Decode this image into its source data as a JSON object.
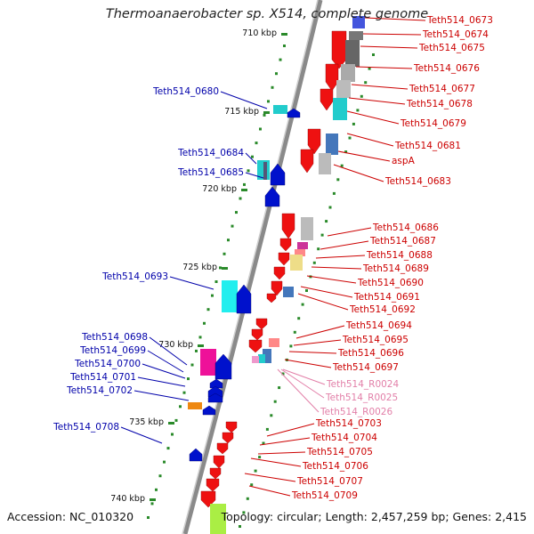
{
  "title": "Thermoanaerobacter sp. X514, complete genome",
  "footer": {
    "accession": "Accession: NC_010320",
    "summary": "Topology: circular; Length: 2,457,259 bp; Genes: 2,415"
  },
  "colors": {
    "plus_label": "#0000aa",
    "minus_label": "#cc0000",
    "rna_label": "#e27fa8",
    "backbone": "#888888",
    "tick": "#2a8a2a"
  },
  "scale": {
    "ticks": [
      "710 kbp",
      "715 kbp",
      "720 kbp",
      "725 kbp",
      "730 kbp",
      "735 kbp",
      "740 kbp"
    ]
  },
  "labels": {
    "plus_strand": [
      "Teth514_0680",
      "Teth514_0684",
      "Teth514_0685",
      "Teth514_0693",
      "Teth514_0698",
      "Teth514_0699",
      "Teth514_0700",
      "Teth514_0701",
      "Teth514_0702",
      "Teth514_0708"
    ],
    "minus_strand": [
      "Teth514_0673",
      "Teth514_0674",
      "Teth514_0675",
      "Teth514_0676",
      "Teth514_0677",
      "Teth514_0678",
      "Teth514_0679",
      "Teth514_0681",
      "aspA",
      "Teth514_0683",
      "Teth514_0686",
      "Teth514_0687",
      "Teth514_0688",
      "Teth514_0689",
      "Teth514_0690",
      "Teth514_0691",
      "Teth514_0692",
      "Teth514_0694",
      "Teth514_0695",
      "Teth514_0696",
      "Teth514_0697",
      "Teth514_0703",
      "Teth514_0704",
      "Teth514_0705",
      "Teth514_0706",
      "Teth514_0707",
      "Teth514_0709"
    ],
    "rna": [
      "Teth514_R0024",
      "Teth514_R0025",
      "Teth514_R0026"
    ]
  }
}
